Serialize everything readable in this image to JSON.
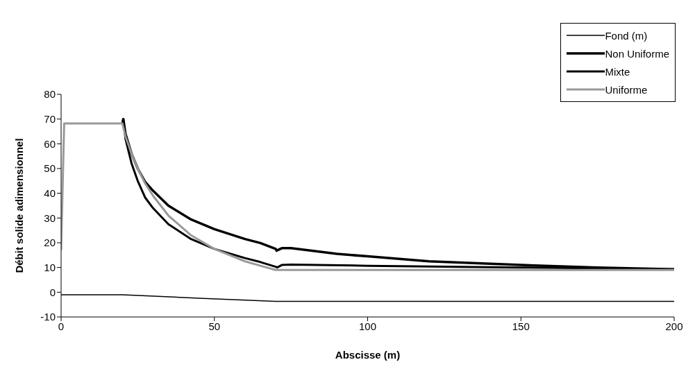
{
  "chart_data": {
    "type": "line",
    "xlabel": "Abscisse (m)",
    "ylabel": "Débit solide adimensionnel",
    "xlim": [
      0,
      200
    ],
    "xticks": [
      0,
      50,
      100,
      150,
      200
    ],
    "ylim": [
      -10,
      80
    ],
    "yticks": [
      -10,
      0,
      10,
      20,
      30,
      40,
      50,
      60,
      70,
      80
    ],
    "grid": false,
    "legend": "top right",
    "marker": "none",
    "line_style": "solid",
    "series": [
      {
        "name": "Fond (m)",
        "color": "#000000",
        "x": [
          0,
          20,
          45,
          70,
          200
        ],
        "values": [
          -1,
          -1,
          -2.4,
          -3.7,
          -3.7
        ]
      },
      {
        "name": "Non Uniforme",
        "color": "#000000",
        "x": [
          20,
          20.3,
          21,
          23,
          25,
          27.4,
          30,
          35,
          42.4,
          50,
          60,
          65,
          70,
          70.3,
          72,
          75,
          90,
          100,
          120,
          150,
          175,
          200
        ],
        "values": [
          68.2,
          70,
          64,
          56,
          50,
          44.6,
          41,
          35,
          29.4,
          25.5,
          21.5,
          19.9,
          17.5,
          16.8,
          17.8,
          17.8,
          15.5,
          14.5,
          12.5,
          11,
          10,
          9.3
        ]
      },
      {
        "name": "Mixte",
        "color": "#000000",
        "x": [
          20,
          20.3,
          21,
          23,
          25,
          27.4,
          30,
          35,
          42.4,
          50,
          60,
          65,
          70,
          70.5,
          72,
          75,
          100,
          150,
          200
        ],
        "values": [
          68.2,
          70,
          62,
          52,
          45,
          38.3,
          34,
          27.5,
          21.5,
          17.5,
          13.8,
          12.2,
          10.3,
          10,
          11,
          11.2,
          10.7,
          10,
          9.3
        ]
      },
      {
        "name": "Uniforme",
        "color": "#999999",
        "x": [
          0,
          1,
          20,
          21,
          23,
          25,
          27.4,
          30,
          35,
          42.4,
          50,
          60,
          65,
          70,
          100,
          150,
          200
        ],
        "values": [
          17,
          68.2,
          68.2,
          63,
          56,
          50,
          44,
          39,
          31,
          23,
          17.5,
          12.5,
          10.7,
          9,
          9,
          9,
          9
        ]
      }
    ]
  }
}
